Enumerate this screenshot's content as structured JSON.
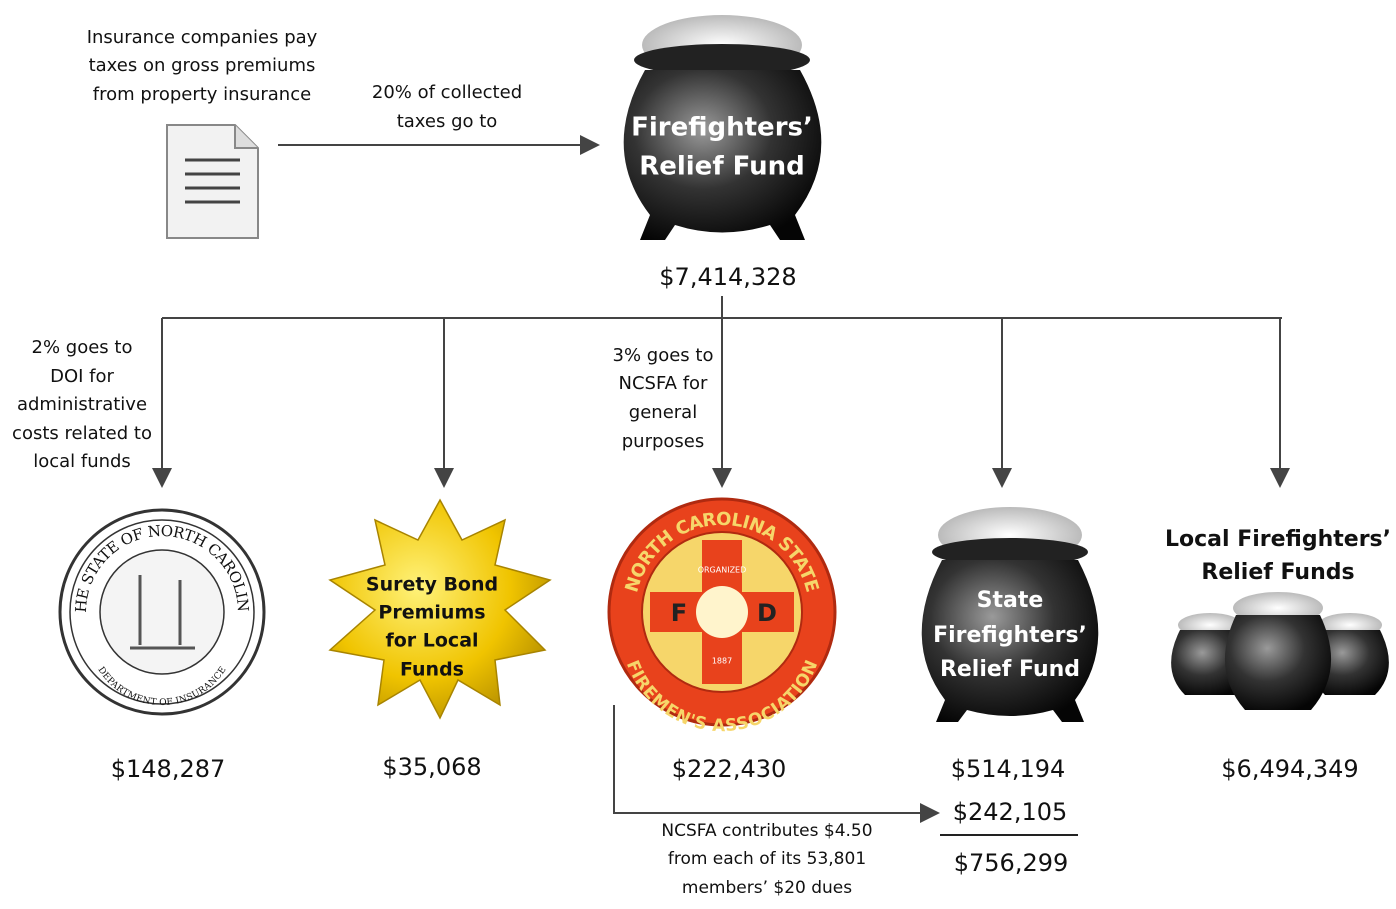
{
  "source": {
    "lines": [
      "Insurance companies pay",
      "taxes on gross premiums",
      "from property insurance"
    ]
  },
  "transfer": {
    "lines": [
      "20% of collected",
      "taxes go to"
    ]
  },
  "fund": {
    "lines": [
      "Firefighters’",
      "Relief Fund"
    ],
    "amount": "$7,414,328"
  },
  "doi": {
    "note": [
      "2% goes to",
      "DOI for",
      "administrative",
      "costs related to",
      "local funds"
    ],
    "seal": {
      "top": "THE STATE OF NORTH CAROLINA",
      "bottom": "DEPARTMENT OF INSURANCE"
    },
    "amount": "$148,287"
  },
  "surety": {
    "lines": [
      "Surety Bond",
      "Premiums",
      "for Local",
      "Funds"
    ],
    "amount": "$35,068"
  },
  "ncsfa": {
    "note": [
      "3% goes to",
      "NCSFA for",
      "general",
      "purposes"
    ],
    "logo": {
      "top": "NORTH CAROLINA STATE",
      "bottom": "FIREMEN'S ASSOCIATION",
      "left": "F",
      "right": "D",
      "upper": "ORGANIZED",
      "lower": "1887"
    },
    "amount": "$222,430"
  },
  "state": {
    "lines": [
      "State",
      "Firefighters’",
      "Relief Fund"
    ],
    "amount": "$514,194",
    "added": "$242,105",
    "total": "$756,299"
  },
  "local": {
    "lines": [
      "Local Firefighters’",
      "Relief Funds"
    ],
    "amount": "$6,494,349"
  },
  "contribution": {
    "lines": [
      "NCSFA contributes $4.50",
      "from each of its 53,801",
      "members’ $20 dues"
    ]
  }
}
